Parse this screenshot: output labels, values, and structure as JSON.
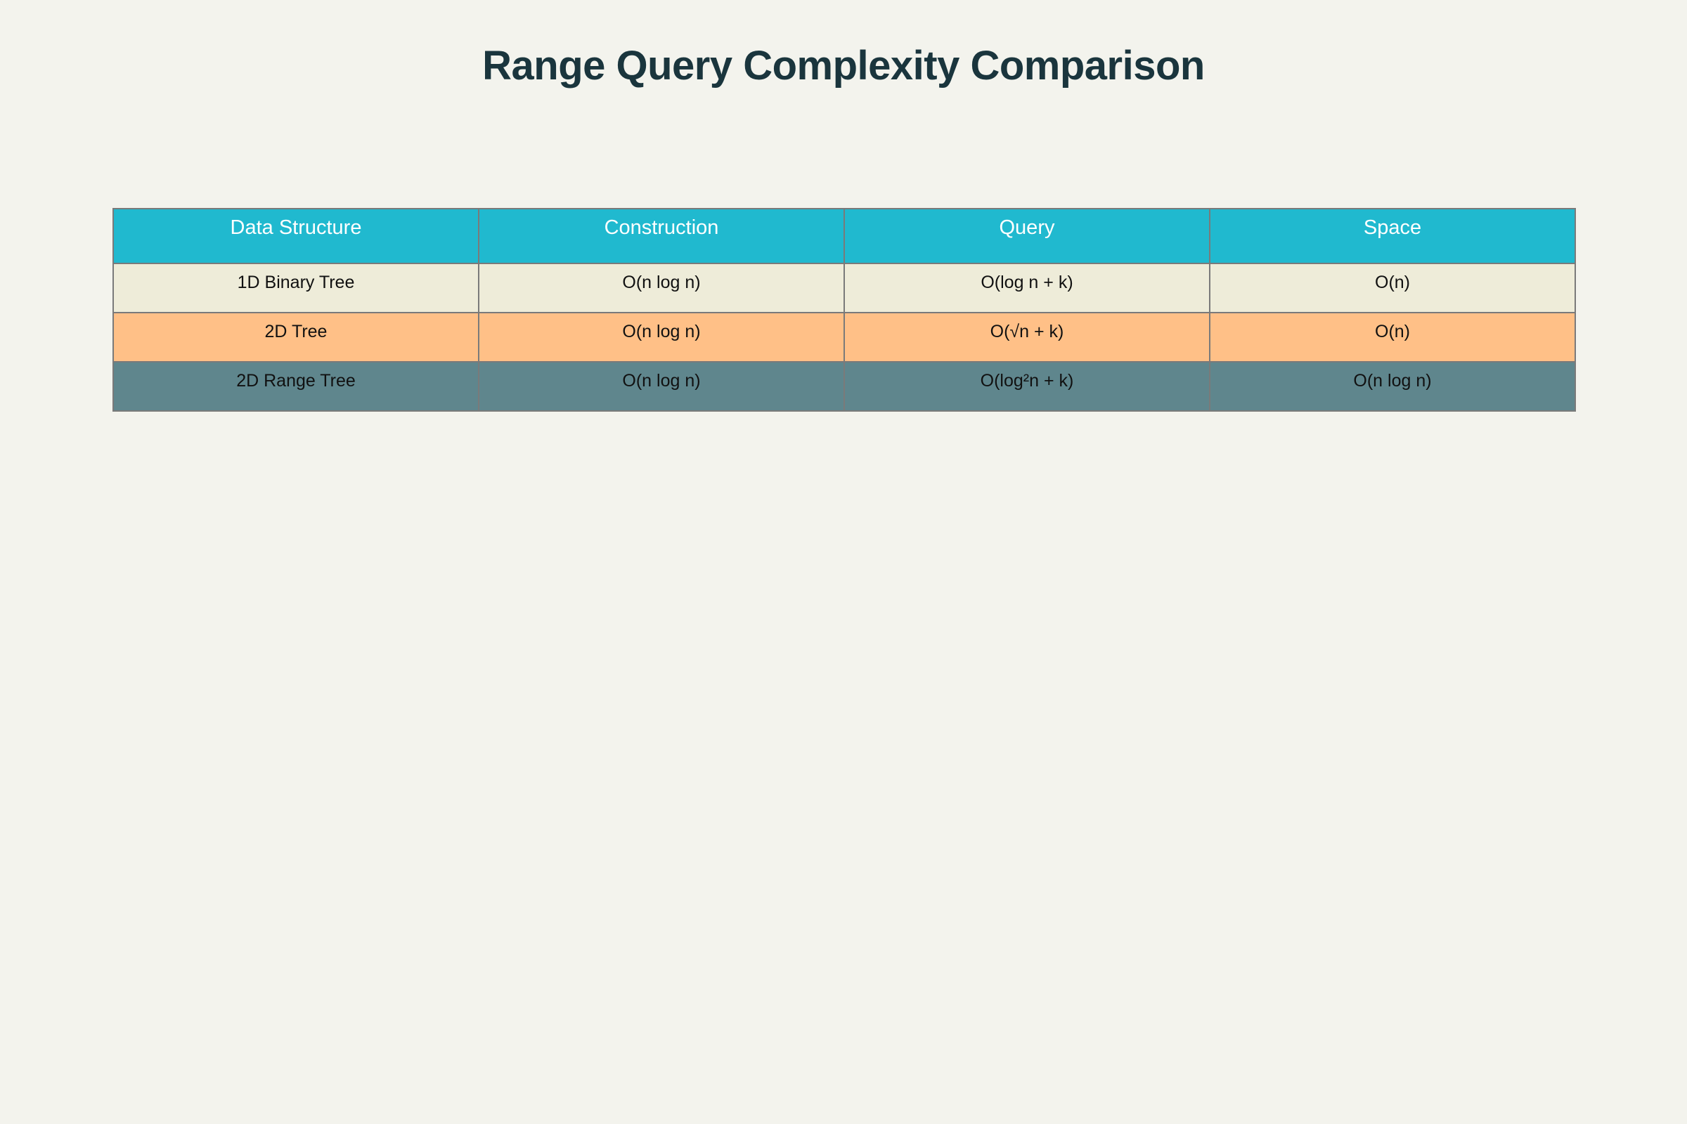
{
  "chart_data": {
    "type": "table",
    "title": "Range Query Complexity Comparison",
    "header_color": "#20b9cf",
    "columns": [
      "Data Structure",
      "Construction",
      "Query",
      "Space"
    ],
    "rows": [
      {
        "color": "#eeecd9",
        "cells": [
          "1D Binary Tree",
          "O(n log n)",
          "O(log n + k)",
          "O(n)"
        ]
      },
      {
        "color": "#ffc087",
        "cells": [
          "2D Tree",
          "O(n log n)",
          "O(√n + k)",
          "O(n)"
        ]
      },
      {
        "color": "#5f868d",
        "cells": [
          "2D Range Tree",
          "O(n log n)",
          "O(log²n + k)",
          "O(n log n)"
        ]
      }
    ]
  }
}
